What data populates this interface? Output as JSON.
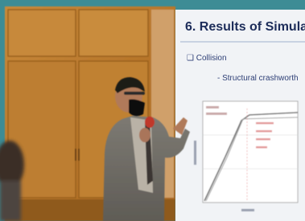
{
  "slide": {
    "title": "6. Results of Simula",
    "bullet": "❑ Collision",
    "sub_bullet": "- Structural crashworth"
  }
}
